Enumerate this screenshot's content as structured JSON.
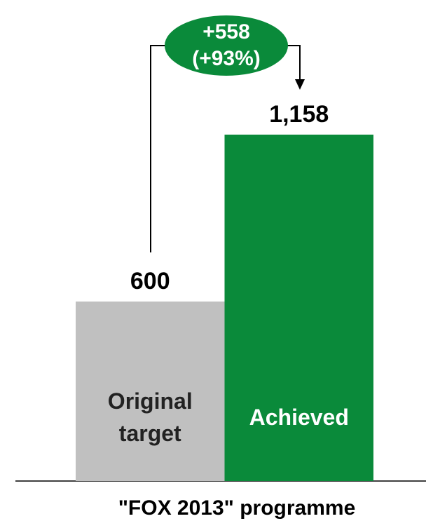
{
  "chart_data": {
    "type": "bar",
    "categories": [
      "Original target",
      "Achieved"
    ],
    "values": [
      600,
      1158
    ],
    "value_labels": [
      "600",
      "1,158"
    ],
    "colors": [
      "#c0c0c0",
      "#0a8a3a"
    ],
    "annotation": [
      "+558",
      "(+93%)"
    ],
    "xlabel": "\"FOX 2013\" programme"
  }
}
